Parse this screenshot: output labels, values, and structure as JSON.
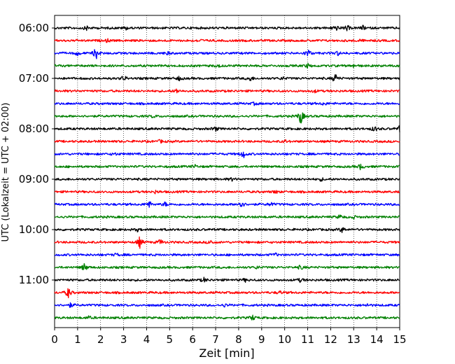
{
  "chart_data": {
    "type": "line",
    "xlabel": "Zeit  [min]",
    "ylabel": "UTC (Lokalzeit = UTC + 02:00)",
    "xlim": [
      0,
      15
    ],
    "x_ticks": [
      "0",
      "1",
      "2",
      "3",
      "4",
      "5",
      "6",
      "7",
      "8",
      "9",
      "10",
      "11",
      "12",
      "13",
      "14",
      "15"
    ],
    "y_ticks": [
      "06:00",
      "07:00",
      "08:00",
      "09:00",
      "10:00",
      "11:00"
    ],
    "grid_x": "dotted vertical lines at each minute",
    "rows_per_hour": 4,
    "minutes_per_row": 15,
    "start_time": "06:00",
    "color_cycle": [
      "#000000",
      "#ff0000",
      "#0000ff",
      "#008000"
    ],
    "series": [
      {
        "time": "06:00",
        "events": [
          {
            "t": 1.4,
            "a": 3
          },
          {
            "t": 3.1,
            "a": 2
          },
          {
            "t": 12.2,
            "a": 5
          },
          {
            "t": 12.7,
            "a": 4
          },
          {
            "t": 13.4,
            "a": 3
          }
        ]
      },
      {
        "time": "06:15",
        "events": [
          {
            "t": 2.3,
            "a": 2
          },
          {
            "t": 6.3,
            "a": 2
          },
          {
            "t": 13.2,
            "a": 2
          }
        ]
      },
      {
        "time": "06:30",
        "events": [
          {
            "t": 1.0,
            "a": 3
          },
          {
            "t": 1.8,
            "a": 9
          },
          {
            "t": 4.9,
            "a": 2
          },
          {
            "t": 11.0,
            "a": 6
          },
          {
            "t": 12.3,
            "a": 3
          }
        ]
      },
      {
        "time": "06:45",
        "events": [
          {
            "t": 7.1,
            "a": 2
          },
          {
            "t": 11.0,
            "a": 3
          },
          {
            "t": 13.0,
            "a": 2
          }
        ]
      },
      {
        "time": "07:00",
        "events": [
          {
            "t": 3.0,
            "a": 4
          },
          {
            "t": 5.4,
            "a": 3
          },
          {
            "t": 8.5,
            "a": 4
          },
          {
            "t": 12.2,
            "a": 7
          },
          {
            "t": 9.9,
            "a": 2
          }
        ]
      },
      {
        "time": "07:15",
        "events": [
          {
            "t": 5.3,
            "a": 3
          },
          {
            "t": 11.3,
            "a": 2
          }
        ]
      },
      {
        "time": "07:30",
        "events": [
          {
            "t": 8.7,
            "a": 2
          },
          {
            "t": 11.7,
            "a": 2
          }
        ]
      },
      {
        "time": "07:45",
        "events": [
          {
            "t": 10.7,
            "a": 12
          },
          {
            "t": 4.3,
            "a": 2
          }
        ]
      },
      {
        "time": "08:00",
        "events": [
          {
            "t": 7.0,
            "a": 3
          },
          {
            "t": 13.9,
            "a": 4
          },
          {
            "t": 15.0,
            "a": 4
          }
        ]
      },
      {
        "time": "08:15",
        "events": [
          {
            "t": 4.6,
            "a": 2
          },
          {
            "t": 10.0,
            "a": 2
          }
        ]
      },
      {
        "time": "08:30",
        "events": [
          {
            "t": 8.2,
            "a": 6
          },
          {
            "t": 2.6,
            "a": 2
          }
        ]
      },
      {
        "time": "08:45",
        "events": [
          {
            "t": 13.3,
            "a": 4
          },
          {
            "t": 6.1,
            "a": 2
          }
        ]
      },
      {
        "time": "09:00",
        "events": [
          {
            "t": 7.7,
            "a": 2
          },
          {
            "t": 11.6,
            "a": 2
          }
        ]
      },
      {
        "time": "09:15",
        "events": [
          {
            "t": 4.4,
            "a": 2
          },
          {
            "t": 9.6,
            "a": 2
          }
        ]
      },
      {
        "time": "09:30",
        "events": [
          {
            "t": 4.1,
            "a": 5
          },
          {
            "t": 4.8,
            "a": 3
          },
          {
            "t": 8.1,
            "a": 7
          },
          {
            "t": 9.4,
            "a": 3
          }
        ]
      },
      {
        "time": "09:45",
        "events": [
          {
            "t": 12.4,
            "a": 3
          },
          {
            "t": 13.0,
            "a": 2
          }
        ]
      },
      {
        "time": "10:00",
        "events": [
          {
            "t": 3.6,
            "a": 2
          },
          {
            "t": 12.5,
            "a": 4
          }
        ]
      },
      {
        "time": "10:15",
        "events": [
          {
            "t": 3.7,
            "a": 8
          },
          {
            "t": 4.6,
            "a": 4
          },
          {
            "t": 6.8,
            "a": 3
          }
        ]
      },
      {
        "time": "10:30",
        "events": [
          {
            "t": 2.7,
            "a": 2
          },
          {
            "t": 9.6,
            "a": 2
          }
        ]
      },
      {
        "time": "10:45",
        "events": [
          {
            "t": 1.3,
            "a": 6
          },
          {
            "t": 8.8,
            "a": 2
          },
          {
            "t": 10.7,
            "a": 3
          }
        ]
      },
      {
        "time": "11:00",
        "events": [
          {
            "t": 6.5,
            "a": 3
          },
          {
            "t": 10.7,
            "a": 3
          },
          {
            "t": 8.3,
            "a": 2
          }
        ]
      },
      {
        "time": "11:15",
        "events": [
          {
            "t": 0.6,
            "a": 8
          },
          {
            "t": 9.8,
            "a": 2
          }
        ]
      },
      {
        "time": "11:30",
        "events": [
          {
            "t": 0.7,
            "a": 3
          },
          {
            "t": 7.4,
            "a": 2
          },
          {
            "t": 13.6,
            "a": 2
          }
        ]
      },
      {
        "time": "11:45",
        "events": [
          {
            "t": 8.6,
            "a": 4
          },
          {
            "t": 1.5,
            "a": 2
          }
        ]
      }
    ]
  }
}
